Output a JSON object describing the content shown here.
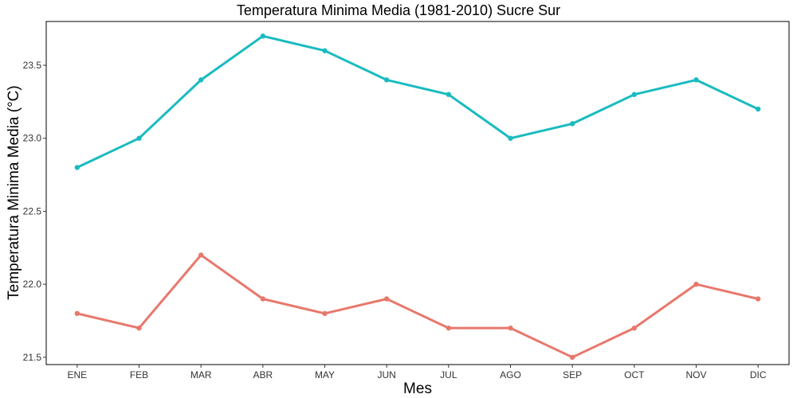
{
  "chart_data": {
    "type": "line",
    "title": "Temperatura Minima Media (1981-2010)  Sucre Sur",
    "xlabel": "Mes",
    "ylabel": "Temperatura Minima Media  (°C)",
    "categories": [
      "ENE",
      "FEB",
      "MAR",
      "ABR",
      "MAY",
      "JUN",
      "JUL",
      "AGO",
      "SEP",
      "OCT",
      "NOV",
      "DIC"
    ],
    "ylim": [
      21.45,
      23.8
    ],
    "yticks": [
      21.5,
      22.0,
      22.5,
      23.0,
      23.5
    ],
    "ytick_labels": [
      "21.5",
      "22.0",
      "22.5",
      "23.0",
      "23.5"
    ],
    "grid": false,
    "legend": "none",
    "series": [
      {
        "color": "#1ABBC0",
        "values": [
          22.8,
          23.0,
          23.4,
          23.7,
          23.6,
          23.4,
          23.3,
          23.0,
          23.1,
          23.3,
          23.4,
          23.2
        ]
      },
      {
        "color": "#E8786C",
        "values": [
          21.8,
          21.7,
          22.2,
          21.9,
          21.8,
          21.9,
          21.7,
          21.7,
          21.5,
          21.7,
          22.0,
          21.9
        ]
      }
    ]
  }
}
